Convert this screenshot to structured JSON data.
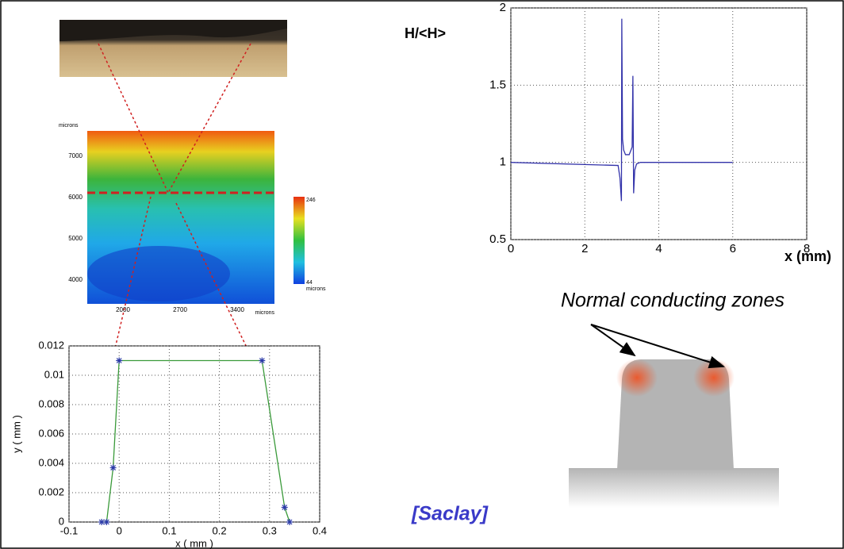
{
  "chart_data": [
    {
      "type": "line",
      "xlabel": "x ( mm )",
      "ylabel": "y ( mm )",
      "x": [
        -0.035,
        -0.025,
        -0.012,
        0,
        0.285,
        0.33,
        0.34
      ],
      "series": [
        {
          "color": "#3a9a3a",
          "marker_color": "#2b3aa8",
          "values": [
            0,
            0,
            0.0037,
            0.011,
            0.011,
            0.001,
            0
          ]
        }
      ],
      "xlim": [
        -0.1,
        0.4
      ],
      "xticks": [
        -0.1,
        0,
        0.1,
        0.2,
        0.3,
        0.4
      ],
      "ylim": [
        0,
        0.012
      ],
      "yticks": [
        0,
        0.002,
        0.004,
        0.006,
        0.008,
        0.01,
        0.012
      ],
      "grid": true
    },
    {
      "type": "line",
      "xlabel": "x (mm)",
      "ylabel": "H/<H>",
      "x": [
        0,
        2.9,
        2.95,
        2.99,
        3.0,
        3.02,
        3.05,
        3.1,
        3.2,
        3.28,
        3.3,
        3.32,
        3.35,
        3.4,
        3.5,
        6
      ],
      "series": [
        {
          "color": "#3333aa",
          "values": [
            1,
            0.98,
            0.9,
            0.75,
            1.93,
            1.15,
            1.08,
            1.05,
            1.05,
            1.1,
            1.56,
            0.8,
            0.95,
            0.99,
            1,
            1
          ]
        }
      ],
      "xlim": [
        0,
        8
      ],
      "xticks": [
        0,
        2,
        4,
        6,
        8
      ],
      "ylim": [
        0.5,
        2
      ],
      "yticks": [
        0.5,
        1,
        1.5,
        2
      ],
      "grid": true
    }
  ],
  "contour_map": {
    "y_label": "microns",
    "yticks": [
      7000,
      6000,
      5000,
      4000
    ],
    "xticks": [
      2000,
      2700,
      3400
    ],
    "x_label": "microns",
    "colorbar_max": 246,
    "colorbar_min": 44,
    "colorbar_label": "microns"
  },
  "annotation": "Normal conducting zones",
  "source": "[Saclay]"
}
